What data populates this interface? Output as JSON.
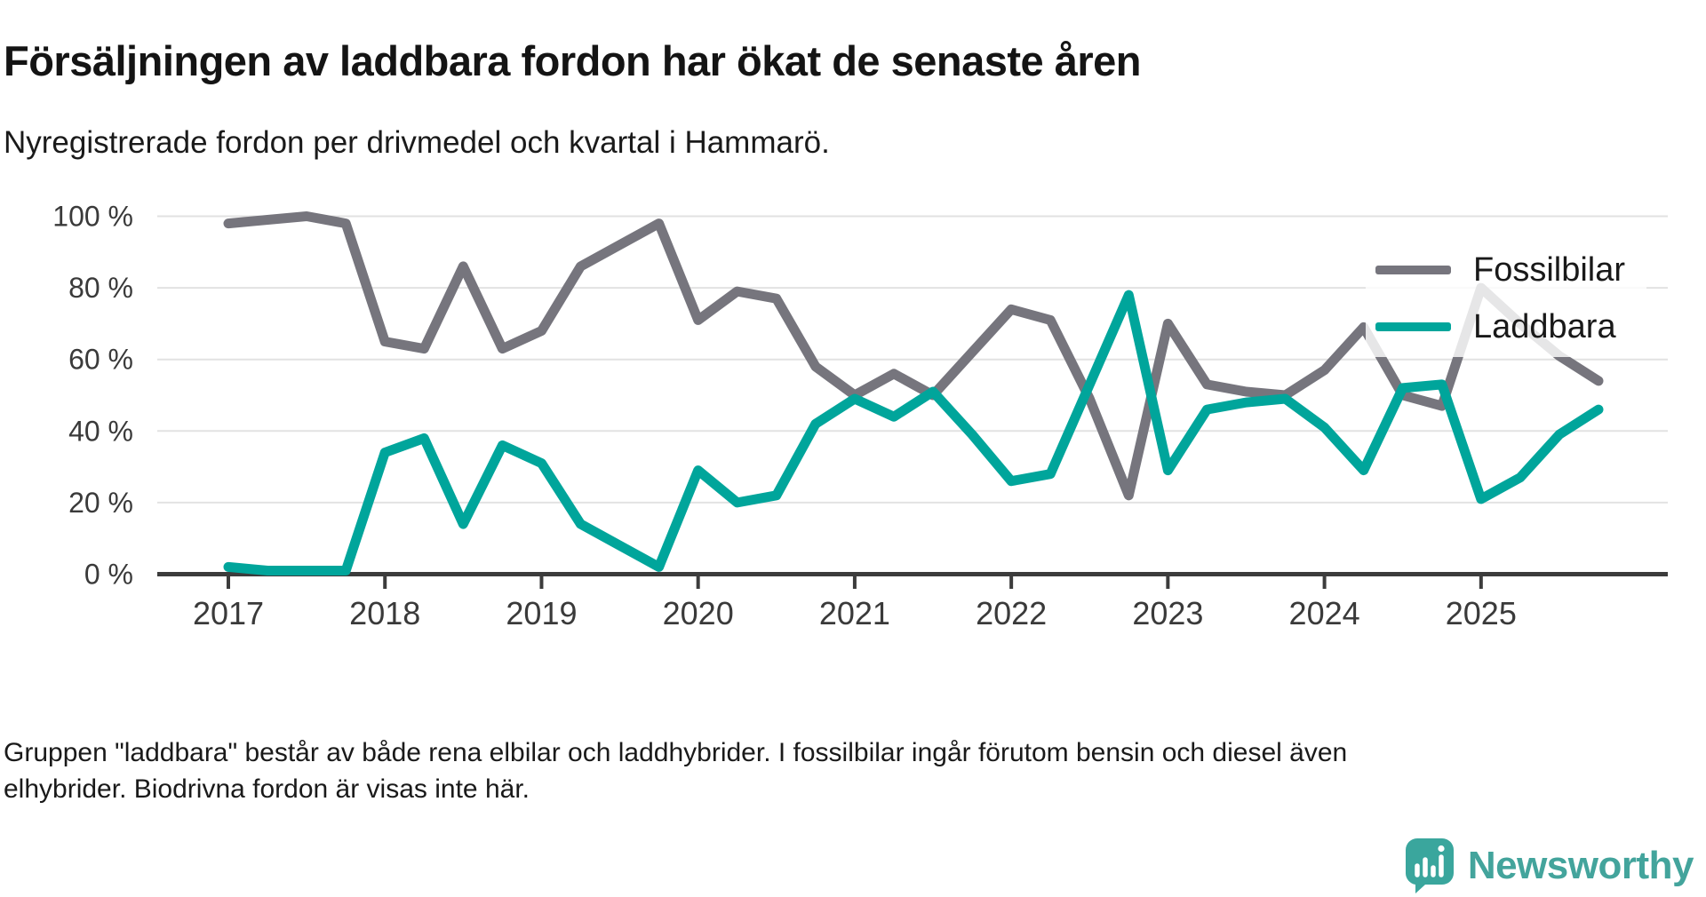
{
  "header": {
    "title": "Försäljningen av laddbara fordon har ökat de senaste åren",
    "subtitle": "Nyregistrerade fordon per drivmedel och kvartal i Hammarö."
  },
  "legend": {
    "items": [
      {
        "label": "Fossilbilar",
        "color": "#76757d"
      },
      {
        "label": "Laddbara",
        "color": "#00a59b"
      }
    ]
  },
  "chart_data": {
    "type": "line",
    "title": "Försäljningen av laddbara fordon har ökat de senaste åren",
    "subtitle": "Nyregistrerade fordon per drivmedel och kvartal i Hammarö.",
    "x_unit": "quarter",
    "x": [
      "2017Q1",
      "2017Q2",
      "2017Q3",
      "2017Q4",
      "2018Q1",
      "2018Q2",
      "2018Q3",
      "2018Q4",
      "2019Q1",
      "2019Q2",
      "2019Q3",
      "2019Q4",
      "2020Q1",
      "2020Q2",
      "2020Q3",
      "2020Q4",
      "2021Q1",
      "2021Q2",
      "2021Q3",
      "2021Q4",
      "2022Q1",
      "2022Q2",
      "2022Q3",
      "2022Q4",
      "2023Q1",
      "2023Q2",
      "2023Q3",
      "2023Q4",
      "2024Q1",
      "2024Q2",
      "2024Q3",
      "2024Q4",
      "2025Q1",
      "2025Q2",
      "2025Q3",
      "2025Q4"
    ],
    "series": [
      {
        "name": "Fossilbilar",
        "color": "#76757d",
        "values": [
          98,
          99,
          100,
          98,
          65,
          63,
          86,
          63,
          68,
          86,
          92,
          98,
          71,
          79,
          77,
          58,
          50,
          56,
          50,
          62,
          74,
          71,
          49,
          22,
          70,
          53,
          51,
          50,
          57,
          69,
          50,
          47,
          80,
          70,
          61,
          54
        ]
      },
      {
        "name": "Laddbara",
        "color": "#00a59b",
        "values": [
          2,
          1,
          1,
          1,
          34,
          38,
          14,
          36,
          31,
          14,
          8,
          2,
          29,
          20,
          22,
          42,
          49,
          44,
          51,
          39,
          26,
          28,
          53,
          78,
          29,
          46,
          48,
          49,
          41,
          29,
          52,
          53,
          21,
          27,
          39,
          46
        ]
      }
    ],
    "ylim": [
      0,
      100
    ],
    "y_tick_labels": [
      "0 %",
      "20 %",
      "40 %",
      "60 %",
      "80 %",
      "100 %"
    ],
    "x_tick_labels": [
      "2017",
      "2018",
      "2019",
      "2020",
      "2021",
      "2022",
      "2023",
      "2024",
      "2025"
    ],
    "grid": "horizontal",
    "legend_position": "top-right-inside"
  },
  "footer": {
    "line1": "Gruppen \"laddbara\" består av både rena elbilar och laddhybrider. I fossilbilar ingår förutom bensin och diesel även",
    "line2": "elhybrider. Biodrivna fordon är visas inte här."
  },
  "logo": {
    "text": "Newsworthy"
  }
}
